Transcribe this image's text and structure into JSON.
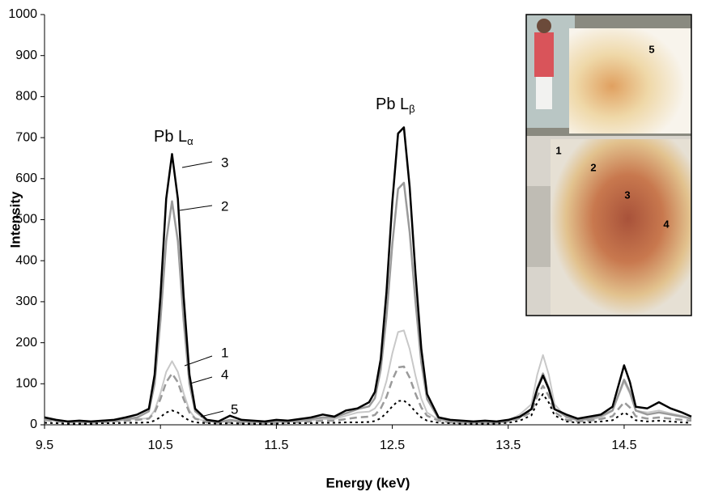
{
  "chart_data": {
    "type": "line",
    "x_label": "Energy (keV)",
    "y_label": "Intensity",
    "xlim": [
      9.5,
      15.08
    ],
    "ylim": [
      0,
      1000
    ],
    "xticks": [
      9.5,
      10.5,
      11.5,
      12.5,
      13.5,
      14.5
    ],
    "yticks": [
      0,
      100,
      200,
      300,
      400,
      500,
      600,
      700,
      800,
      900,
      1000
    ],
    "grid": false,
    "annotations": [
      {
        "text": "Pb L",
        "sub": "α"
      },
      {
        "text": "Pb L",
        "sub": "β"
      }
    ],
    "inset_labels": [
      "5",
      "1",
      "2",
      "3",
      "4"
    ],
    "x": [
      9.5,
      9.6,
      9.7,
      9.8,
      9.9,
      10.0,
      10.1,
      10.2,
      10.3,
      10.4,
      10.45,
      10.5,
      10.55,
      10.6,
      10.65,
      10.7,
      10.75,
      10.8,
      10.9,
      11.0,
      11.1,
      11.2,
      11.3,
      11.4,
      11.5,
      11.6,
      11.7,
      11.8,
      11.9,
      12.0,
      12.1,
      12.2,
      12.3,
      12.35,
      12.4,
      12.45,
      12.5,
      12.55,
      12.6,
      12.65,
      12.7,
      12.75,
      12.8,
      12.9,
      13.0,
      13.1,
      13.2,
      13.3,
      13.4,
      13.5,
      13.6,
      13.7,
      13.75,
      13.8,
      13.85,
      13.9,
      14.0,
      14.1,
      14.2,
      14.3,
      14.4,
      14.5,
      14.55,
      14.6,
      14.7,
      14.8,
      14.9,
      15.0,
      15.08
    ],
    "series": [
      {
        "name": "1",
        "color": "#c8c8c8",
        "dash": "solid",
        "values": [
          14,
          10,
          8,
          6,
          6,
          8,
          8,
          12,
          14,
          16,
          35,
          77,
          129,
          155,
          129,
          77,
          35,
          16,
          8,
          6,
          10,
          6,
          6,
          5,
          6,
          8,
          8,
          10,
          14,
          14,
          22,
          30,
          32,
          40,
          60,
          107,
          174,
          226,
          230,
          185,
          120,
          64,
          30,
          12,
          8,
          6,
          6,
          6,
          6,
          10,
          25,
          50,
          122,
          170,
          122,
          50,
          18,
          10,
          12,
          18,
          34,
          105,
          76,
          34,
          30,
          35,
          28,
          22,
          15
        ]
      },
      {
        "name": "2",
        "color": "#9a9a9a",
        "dash": "solid",
        "values": [
          15,
          10,
          8,
          8,
          6,
          8,
          10,
          14,
          18,
          33,
          100,
          255,
          448,
          545,
          448,
          255,
          100,
          33,
          10,
          6,
          12,
          8,
          8,
          6,
          8,
          8,
          10,
          14,
          18,
          18,
          28,
          38,
          45,
          65,
          135,
          264,
          440,
          575,
          590,
          470,
          300,
          152,
          63,
          15,
          10,
          8,
          6,
          8,
          6,
          10,
          18,
          39,
          90,
          125,
          90,
          39,
          20,
          12,
          15,
          22,
          35,
          110,
          80,
          35,
          25,
          30,
          25,
          20,
          15
        ]
      },
      {
        "name": "3",
        "color": "#000000",
        "dash": "solid",
        "values": [
          18,
          12,
          8,
          10,
          8,
          10,
          12,
          18,
          25,
          39,
          122,
          314,
          551,
          660,
          551,
          314,
          122,
          39,
          12,
          8,
          22,
          12,
          10,
          8,
          12,
          10,
          14,
          18,
          25,
          20,
          35,
          40,
          55,
          80,
          160,
          324,
          543,
          710,
          725,
          580,
          370,
          185,
          75,
          18,
          12,
          10,
          8,
          10,
          8,
          12,
          20,
          38,
          87,
          120,
          87,
          38,
          25,
          15,
          20,
          25,
          44,
          145,
          104,
          44,
          40,
          55,
          40,
          30,
          20
        ]
      },
      {
        "name": "4",
        "color": "#9a9a9a",
        "dash": "dash",
        "values": [
          12,
          8,
          6,
          6,
          5,
          6,
          8,
          10,
          12,
          15,
          30,
          63,
          104,
          125,
          104,
          63,
          30,
          15,
          6,
          5,
          6,
          5,
          5,
          4,
          5,
          6,
          6,
          8,
          10,
          10,
          14,
          18,
          20,
          24,
          40,
          68,
          109,
          140,
          142,
          115,
          76,
          42,
          22,
          10,
          6,
          5,
          5,
          5,
          5,
          8,
          16,
          31,
          70,
          95,
          70,
          31,
          12,
          8,
          10,
          14,
          21,
          55,
          42,
          21,
          15,
          18,
          15,
          12,
          10
        ]
      },
      {
        "name": "5",
        "color": "#000000",
        "dash": "dot",
        "values": [
          5,
          4,
          3,
          3,
          3,
          4,
          4,
          5,
          5,
          6,
          10,
          19,
          30,
          35,
          30,
          19,
          10,
          6,
          4,
          3,
          4,
          3,
          3,
          3,
          3,
          4,
          4,
          4,
          5,
          5,
          6,
          6,
          7,
          9,
          16,
          29,
          45,
          58,
          59,
          48,
          32,
          18,
          10,
          5,
          4,
          3,
          3,
          3,
          3,
          5,
          10,
          23,
          54,
          75,
          54,
          23,
          8,
          5,
          6,
          8,
          11,
          30,
          22,
          11,
          8,
          10,
          8,
          6,
          5
        ]
      }
    ]
  }
}
